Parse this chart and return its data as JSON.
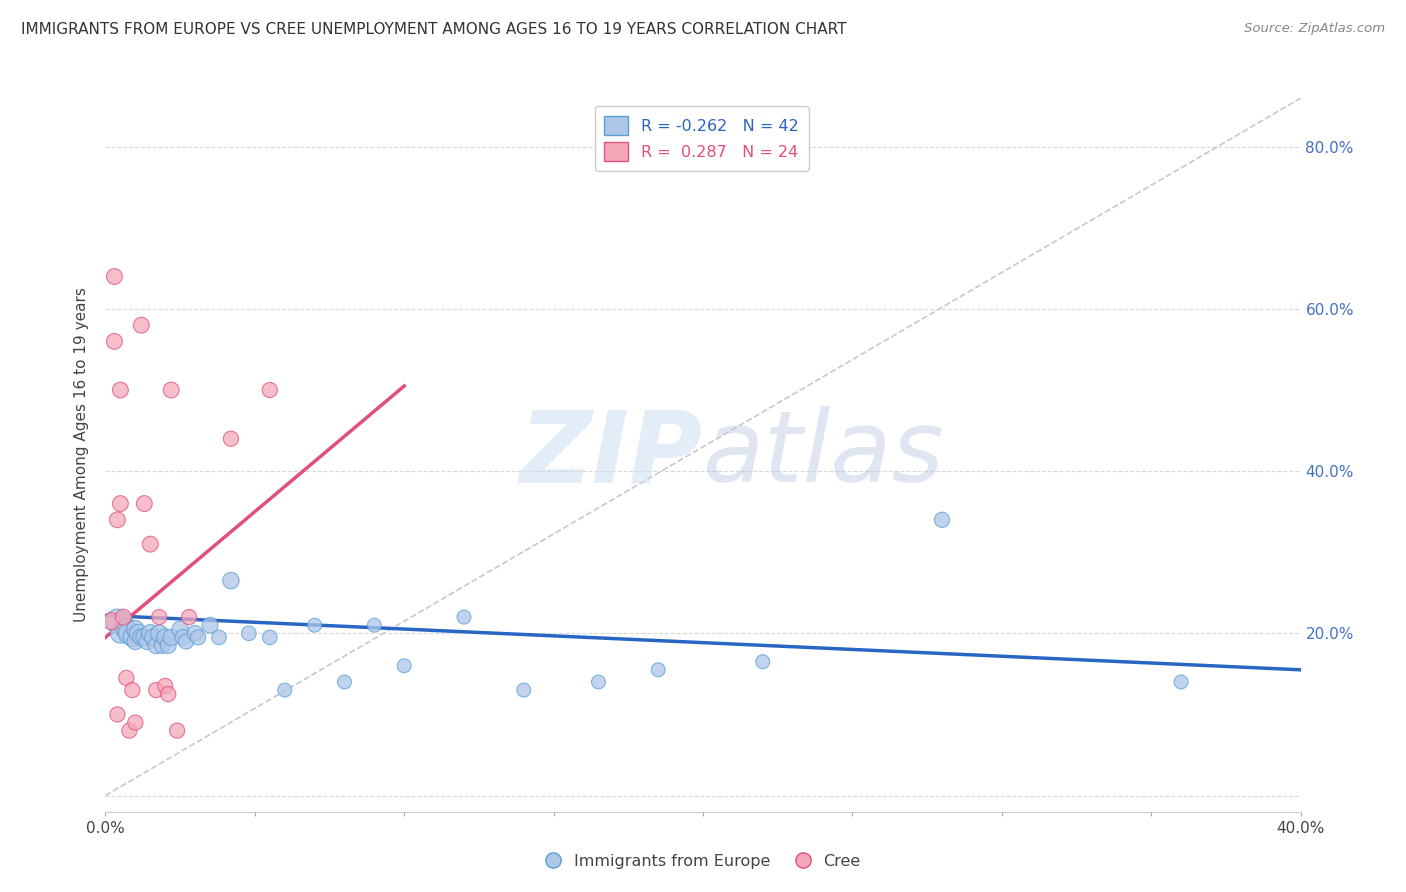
{
  "title": "IMMIGRANTS FROM EUROPE VS CREE UNEMPLOYMENT AMONG AGES 16 TO 19 YEARS CORRELATION CHART",
  "source": "Source: ZipAtlas.com",
  "ylabel": "Unemployment Among Ages 16 to 19 years",
  "xlim": [
    0.0,
    0.4
  ],
  "ylim": [
    -0.02,
    0.86
  ],
  "xticks": [
    0.0,
    0.05,
    0.1,
    0.15,
    0.2,
    0.25,
    0.3,
    0.35,
    0.4
  ],
  "xtick_labels": [
    "0.0%",
    "",
    "",
    "",
    "",
    "",
    "",
    "",
    "40.0%"
  ],
  "yticks": [
    0.0,
    0.2,
    0.4,
    0.6,
    0.8
  ],
  "ytick_labels_right": [
    "",
    "20.0%",
    "40.0%",
    "60.0%",
    "80.0%"
  ],
  "legend_r_entries": [
    {
      "label_r": "R = ",
      "label_val": "-0.262",
      "label_n": "   N = ",
      "label_nval": "42"
    },
    {
      "label_r": "R =  ",
      "label_val": "0.287",
      "label_n": "   N = ",
      "label_nval": "24"
    }
  ],
  "blue_scatter_x": [
    0.004,
    0.005,
    0.006,
    0.007,
    0.008,
    0.009,
    0.01,
    0.01,
    0.011,
    0.012,
    0.013,
    0.014,
    0.015,
    0.016,
    0.017,
    0.018,
    0.019,
    0.02,
    0.021,
    0.022,
    0.025,
    0.026,
    0.027,
    0.03,
    0.031,
    0.035,
    0.038,
    0.042,
    0.048,
    0.055,
    0.06,
    0.07,
    0.08,
    0.09,
    0.1,
    0.12,
    0.14,
    0.165,
    0.185,
    0.22,
    0.28,
    0.36
  ],
  "blue_scatter_y": [
    0.215,
    0.2,
    0.215,
    0.205,
    0.2,
    0.195,
    0.205,
    0.19,
    0.2,
    0.195,
    0.195,
    0.19,
    0.2,
    0.195,
    0.185,
    0.2,
    0.185,
    0.195,
    0.185,
    0.195,
    0.205,
    0.195,
    0.19,
    0.2,
    0.195,
    0.21,
    0.195,
    0.265,
    0.2,
    0.195,
    0.13,
    0.21,
    0.14,
    0.21,
    0.16,
    0.22,
    0.13,
    0.14,
    0.155,
    0.165,
    0.34,
    0.14
  ],
  "blue_scatter_sizes": [
    300,
    200,
    180,
    220,
    250,
    180,
    160,
    140,
    170,
    150,
    150,
    140,
    160,
    150,
    140,
    150,
    130,
    150,
    130,
    140,
    140,
    130,
    120,
    130,
    120,
    130,
    110,
    140,
    110,
    110,
    100,
    100,
    100,
    100,
    100,
    100,
    100,
    100,
    100,
    100,
    120,
    100
  ],
  "pink_scatter_x": [
    0.002,
    0.003,
    0.003,
    0.004,
    0.004,
    0.005,
    0.005,
    0.006,
    0.007,
    0.008,
    0.009,
    0.01,
    0.012,
    0.013,
    0.015,
    0.017,
    0.018,
    0.02,
    0.021,
    0.022,
    0.024,
    0.028,
    0.042,
    0.055
  ],
  "pink_scatter_y": [
    0.215,
    0.64,
    0.56,
    0.34,
    0.1,
    0.36,
    0.5,
    0.22,
    0.145,
    0.08,
    0.13,
    0.09,
    0.58,
    0.36,
    0.31,
    0.13,
    0.22,
    0.135,
    0.125,
    0.5,
    0.08,
    0.22,
    0.44,
    0.5
  ],
  "pink_scatter_sizes": [
    150,
    130,
    130,
    130,
    120,
    130,
    130,
    130,
    120,
    120,
    120,
    120,
    130,
    130,
    130,
    120,
    120,
    120,
    120,
    130,
    120,
    120,
    120,
    120
  ],
  "blue_scatter_color": "#aec6e8",
  "blue_scatter_edge": "#5a9fd4",
  "pink_scatter_color": "#f4a7b9",
  "pink_scatter_edge": "#e05080",
  "blue_line_x": [
    0.0,
    0.4
  ],
  "blue_line_y": [
    0.222,
    0.155
  ],
  "blue_line_color": "#2966c4",
  "pink_line_x": [
    0.0,
    0.1
  ],
  "pink_line_y": [
    0.195,
    0.505
  ],
  "pink_line_color": "#e0507a",
  "dash_line_color": "#c8c8c8",
  "watermark_zip": "ZIP",
  "watermark_atlas": "atlas",
  "background_color": "#ffffff",
  "grid_color": "#d8d8d8"
}
